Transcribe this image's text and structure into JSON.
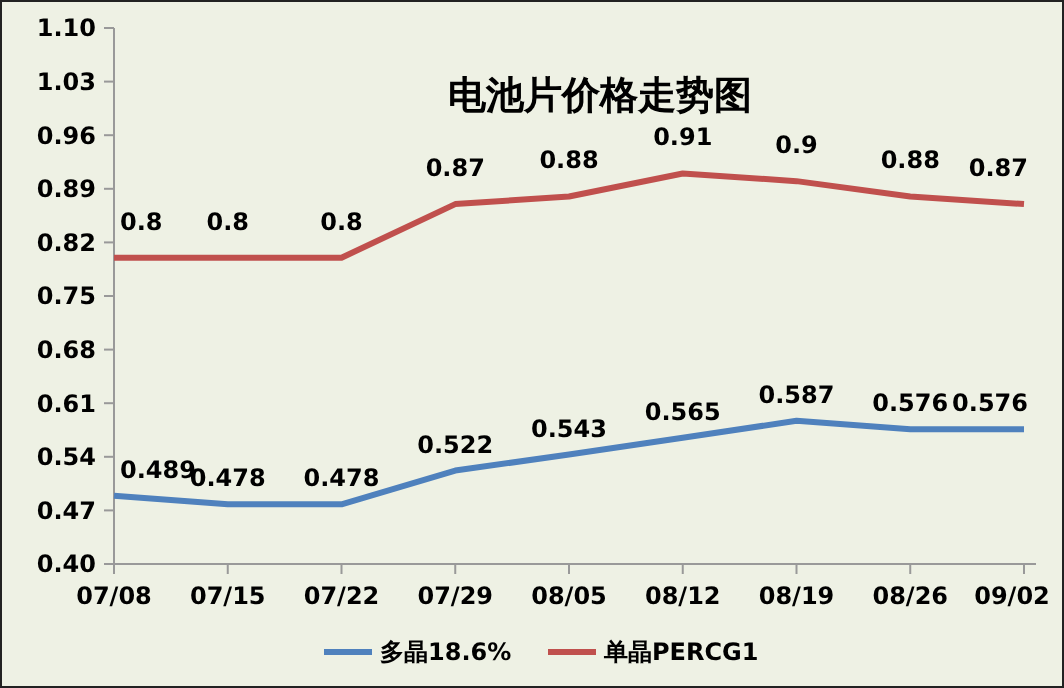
{
  "chart_data": {
    "type": "line",
    "title": "电池片价格走势图",
    "categories": [
      "07/08",
      "07/15",
      "07/22",
      "07/29",
      "08/05",
      "08/12",
      "08/19",
      "08/26",
      "09/02"
    ],
    "series": [
      {
        "name": "多晶18.6%",
        "color": "#4f81bd",
        "values": [
          0.489,
          0.478,
          0.478,
          0.522,
          0.543,
          0.565,
          0.587,
          0.576,
          0.576
        ]
      },
      {
        "name": "单晶PERCG1",
        "color": "#c0504d",
        "values": [
          0.8,
          0.8,
          0.8,
          0.87,
          0.88,
          0.91,
          0.9,
          0.88,
          0.87
        ]
      }
    ],
    "ylim": [
      0.4,
      1.1
    ],
    "yticks": [
      {
        "value": 0.4,
        "label": "0.40"
      },
      0.47,
      0.54,
      0.61,
      0.68,
      0.75,
      0.82,
      0.89,
      0.96,
      1.03,
      {
        "value": 1.1,
        "label": "1.10"
      }
    ],
    "data_labels": true,
    "legend": "bottom",
    "grid": false,
    "marker": "none",
    "line_style": "solid"
  }
}
